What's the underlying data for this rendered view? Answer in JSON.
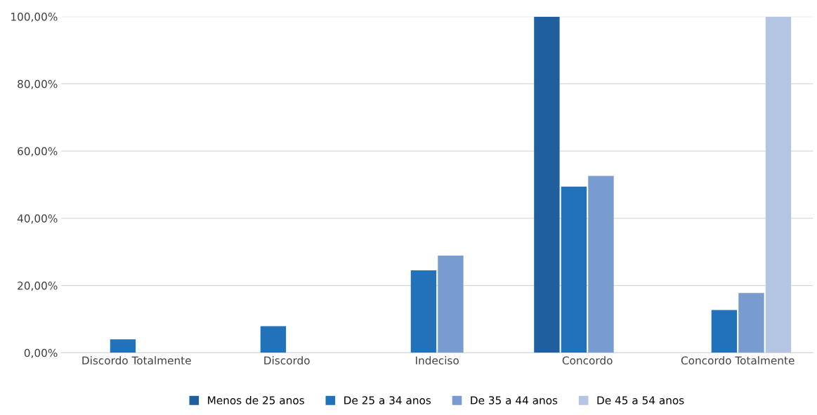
{
  "chart_data": {
    "type": "bar",
    "categories": [
      "Discordo Totalmente",
      "Discordo",
      "Indeciso",
      "Concordo",
      "Concordo Totalmente"
    ],
    "series": [
      {
        "name": "Menos de 25 anos",
        "color": "#1f5f9e",
        "values": [
          null,
          null,
          null,
          100,
          null
        ]
      },
      {
        "name": "De 25 a 34 anos",
        "color": "#2272ba",
        "values": [
          4.0,
          7.9,
          24.5,
          49.4,
          12.7
        ]
      },
      {
        "name": "De 35 a 44 anos",
        "color": "#789bd0",
        "values": [
          null,
          null,
          28.9,
          52.6,
          17.8
        ]
      },
      {
        "name": "De 45 a 54 anos",
        "color": "#b4c4e3",
        "values": [
          null,
          null,
          null,
          null,
          100
        ]
      }
    ],
    "ylim": [
      0,
      100
    ],
    "yticks": [
      {
        "value": 0,
        "label": "0,00%"
      },
      {
        "value": 20,
        "label": "20,00%"
      },
      {
        "value": 40,
        "label": "40,00%"
      },
      {
        "value": 60,
        "label": "60,00%"
      },
      {
        "value": 80,
        "label": "80,00%"
      },
      {
        "value": 100,
        "label": "100,00%"
      }
    ],
    "grid": "y",
    "legend": "bottom"
  }
}
